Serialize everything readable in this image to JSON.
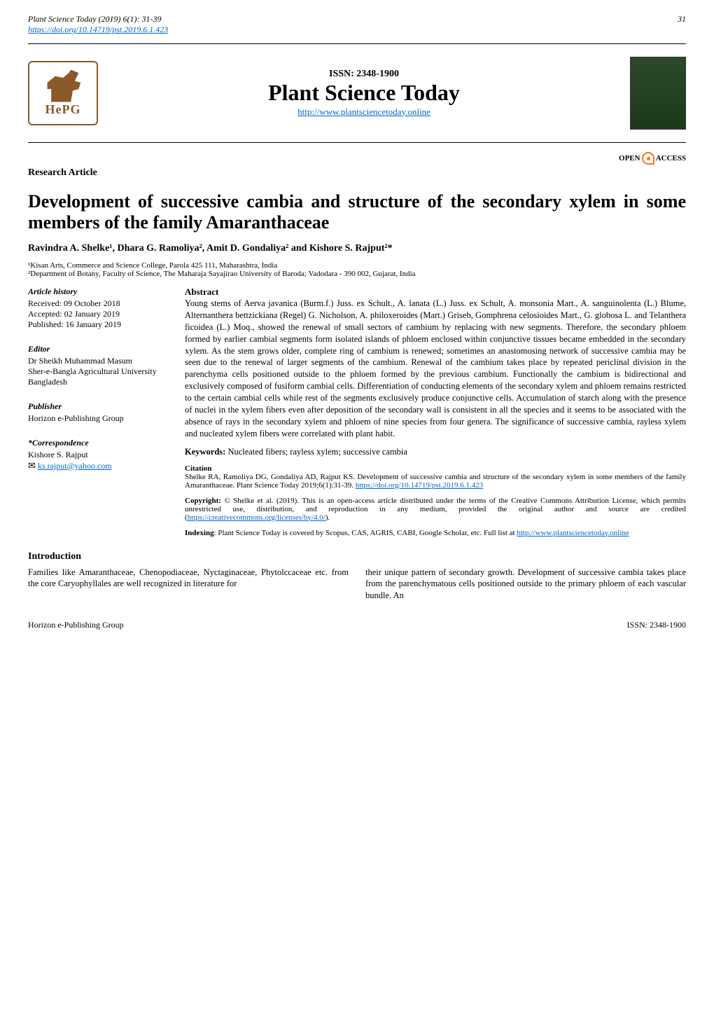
{
  "page_top": {
    "journal_ref_italic": "Plant Science Today",
    "journal_ref_rest": " (2019) 6(1): 31-39",
    "doi_url": "https://doi.org/10.14719/pst.2019.6.1.423",
    "page_number": "31"
  },
  "logo": {
    "text": "HePG"
  },
  "journal": {
    "issn_line": "ISSN: 2348-1900",
    "name": "Plant Science Today",
    "url_text": "http://www.plantsciencetoday.online"
  },
  "open_access": {
    "open": "OPEN",
    "access": "ACCESS"
  },
  "article_type": "Research Article",
  "title": "Development of successive cambia and structure of the secondary xylem in some members of the family Amaranthaceae",
  "authors_html": "Ravindra A. Shelke¹, Dhara G. Ramoliya², Amit D. Gondaliya² and Kishore S. Rajput²*",
  "affiliations": {
    "a1": "¹Kisan Arts, Commerce and Science College, Parola 425 111, Maharashtra, India",
    "a2": "²Department of Botany, Faculty of Science, The Maharaja Sayajirao University of Baroda; Vadodara - 390 002, Gujarat, India"
  },
  "article_history": {
    "title": "Article history",
    "received": "Received: 09 October 2018",
    "accepted": "Accepted: 02 January 2019",
    "published": "Published: 16 January 2019"
  },
  "editor": {
    "title": "Editor",
    "line1": "Dr Sheikh Muhammad Masum",
    "line2": "Sher-e-Bangla Agricultural University",
    "line3": "Bangladesh"
  },
  "publisher": {
    "title": "Publisher",
    "name": "Horizon e-Publishing Group"
  },
  "correspondence": {
    "title": "*Correspondence",
    "name": "Kishore S. Rajput",
    "email": "ks.rajput@yahoo.com"
  },
  "abstract": {
    "heading": "Abstract",
    "text": "Young stems of Aerva javanica (Burm.f.) Juss. ex Schult., A. lanata (L.) Juss. ex Schult, A. monsonia Mart., A. sanguinolenta (L.) Blume, Alternanthera bettzickiana (Regel) G. Nicholson, A. philoxeroides (Mart.) Griseb, Gomphrena celosioides Mart., G. globosa L. and Telanthera ficoidea (L.) Moq., showed the renewal of small sectors of cambium by replacing with new segments. Therefore, the secondary phloem formed by earlier cambial segments form isolated islands of phloem enclosed within conjunctive tissues became embedded in the secondary xylem. As the stem grows older, complete ring of cambium is renewed; sometimes an anastomosing network of successive cambia may be seen due to the renewal of larger segments of the cambium. Renewal of the cambium takes place by repeated periclinal division in the parenchyma cells positioned outside to the phloem formed by the previous cambium. Functionally the cambium is bidirectional and exclusively composed of fusiform cambial cells. Differentiation of conducting elements of the secondary xylem and phloem remains restricted to the certain cambial cells while rest of the segments exclusively produce conjunctive cells. Accumulation of starch along with the presence of nuclei in the xylem fibers even after deposition of the secondary wall is consistent in all the species and it seems to be associated with the absence of rays in the secondary xylem and phloem of nine species from four genera. The significance of successive cambia, rayless xylem and nucleated xylem fibers were correlated with plant habit."
  },
  "keywords": {
    "label": "Keywords:",
    "text": " Nucleated fibers; rayless xylem; successive cambia"
  },
  "citation": {
    "label": "Citation",
    "text": "Shelke RA, Ramoliya DG, Gondaliya AD, Rajput KS. Development of successive cambia and structure of the secondary xylem in some members of the family Amaranthaceae. Plant Science Today 2019;6(1):31-39. ",
    "link": "https://doi.org/10.14719/pst.2019.6.1.423"
  },
  "copyright": {
    "label": "Copyright:",
    "text_before": " © Shelke et al. (2019). This is an open-access article distributed under the terms of the Creative Commons Attribution License, which permits unrestricted use, distribution, and reproduction in any medium, provided the original author and source are credited (",
    "link": "https://creativecommons.org/licenses/by/4.0/",
    "text_after": ")."
  },
  "indexing": {
    "label": "Indexing",
    "text": ": Plant Science Today is covered by Scopus, CAS, AGRIS, CABI, Google Scholar, etc. Full list at ",
    "link": "http://www.plantsciencetoday.online"
  },
  "introduction": {
    "heading": "Introduction",
    "col1": "Families like Amaranthaceae, Chenopodiaceae, Nyctaginaceae, Phytolccaceae etc. from the core Caryophyllales are well recognized in literature for",
    "col2": "their unique pattern of secondary growth. Development of successive cambia takes place from the parenchymatous cells positioned outside to the primary phloem of each vascular bundle. An"
  },
  "footer": {
    "left": "Horizon e-Publishing Group",
    "right": "ISSN: 2348-1900"
  },
  "colors": {
    "link": "#0066cc",
    "logo_brown": "#8B5A2A",
    "oa_orange": "#f97316"
  }
}
